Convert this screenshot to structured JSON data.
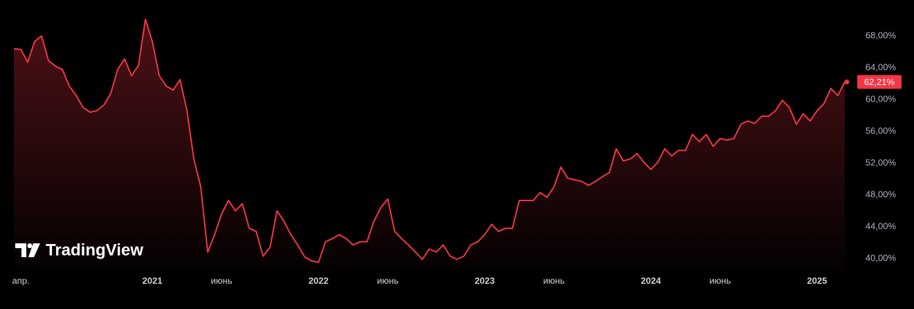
{
  "chart_data": {
    "type": "line",
    "color": "#f23645",
    "grid": false,
    "watermark": "TradingView",
    "categories": [
      null,
      "апр.",
      null,
      null,
      null,
      null,
      null,
      null,
      null,
      null,
      null,
      null,
      null,
      null,
      null,
      null,
      null,
      null,
      null,
      null,
      "2021",
      null,
      null,
      null,
      null,
      null,
      null,
      null,
      null,
      null,
      "июнь",
      null,
      null,
      null,
      null,
      null,
      null,
      null,
      null,
      null,
      null,
      null,
      null,
      null,
      "2022",
      null,
      null,
      null,
      null,
      null,
      null,
      null,
      null,
      null,
      "июнь",
      null,
      null,
      null,
      null,
      null,
      null,
      null,
      null,
      null,
      null,
      null,
      null,
      null,
      "2023",
      null,
      null,
      null,
      null,
      null,
      null,
      null,
      null,
      null,
      "июнь",
      null,
      null,
      null,
      null,
      null,
      null,
      null,
      null,
      null,
      null,
      null,
      null,
      null,
      "2024",
      null,
      null,
      null,
      null,
      null,
      null,
      null,
      null,
      null,
      "июнь",
      null,
      null,
      null,
      null,
      null,
      null,
      null,
      null,
      null,
      null,
      null,
      null,
      null,
      "2025",
      null,
      null,
      null,
      null
    ],
    "values": [
      66.4,
      66.3,
      64.7,
      67.3,
      68.0,
      64.9,
      64.2,
      63.8,
      61.7,
      60.5,
      59.0,
      58.4,
      58.6,
      59.3,
      60.8,
      63.8,
      65.1,
      63.0,
      64.3,
      70.1,
      67.3,
      63.0,
      61.7,
      61.2,
      62.5,
      58.6,
      52.5,
      49.0,
      40.8,
      43.0,
      45.6,
      47.3,
      46.0,
      46.9,
      43.8,
      43.4,
      40.3,
      41.4,
      46.0,
      44.7,
      43.0,
      41.7,
      40.2,
      39.7,
      39.5,
      42.1,
      42.5,
      43.0,
      42.5,
      41.7,
      42.1,
      42.1,
      44.7,
      46.4,
      47.5,
      43.4,
      42.5,
      41.7,
      40.8,
      39.9,
      41.2,
      40.8,
      41.7,
      40.3,
      39.9,
      40.3,
      41.7,
      42.1,
      43.0,
      44.3,
      43.4,
      43.8,
      43.8,
      47.3,
      47.3,
      47.3,
      48.3,
      47.7,
      49.0,
      51.5,
      50.1,
      49.9,
      49.7,
      49.2,
      49.7,
      50.3,
      50.8,
      53.8,
      52.3,
      52.5,
      53.2,
      52.1,
      51.2,
      52.1,
      53.8,
      52.9,
      53.6,
      53.6,
      55.6,
      54.7,
      55.6,
      54.1,
      55.1,
      54.9,
      55.1,
      56.9,
      57.3,
      57.0,
      57.9,
      57.9,
      58.6,
      59.9,
      59.0,
      56.9,
      58.2,
      57.3,
      58.6,
      59.5,
      61.4,
      60.5,
      62.21
    ],
    "last_price": {
      "value": 62.21,
      "label": "62,21%"
    },
    "ylim": [
      38.6,
      71.65
    ],
    "yticks": [
      {
        "value": 40,
        "label": "40,00%"
      },
      {
        "value": 44,
        "label": "44,00%"
      },
      {
        "value": 48,
        "label": "48,00%"
      },
      {
        "value": 52,
        "label": "52,00%"
      },
      {
        "value": 56,
        "label": "56,00%"
      },
      {
        "value": 60,
        "label": "60,00%"
      },
      {
        "value": 64,
        "label": "64,00%"
      },
      {
        "value": 68,
        "label": "68,00%"
      }
    ]
  }
}
